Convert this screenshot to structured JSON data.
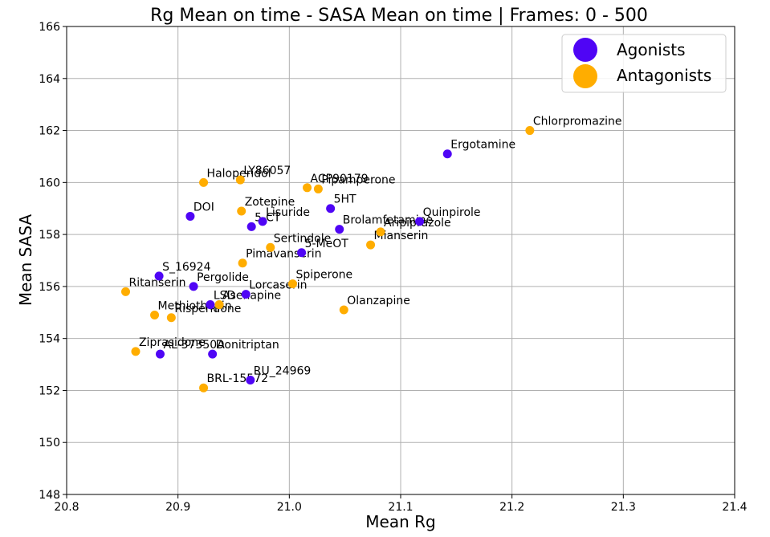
{
  "chart_data": {
    "type": "scatter",
    "title": "Rg Mean on time - SASA Mean on time  | Frames: 0 - 500",
    "xlabel": "Mean Rg",
    "ylabel": "Mean SASA",
    "xlim": [
      20.8,
      21.4
    ],
    "ylim": [
      148,
      166
    ],
    "xticks": [
      "20.8",
      "20.9",
      "21.0",
      "21.1",
      "21.2",
      "21.3",
      "21.4"
    ],
    "yticks": [
      "148",
      "150",
      "152",
      "154",
      "156",
      "158",
      "160",
      "162",
      "164",
      "166"
    ],
    "grid": true,
    "legend_position": "top-right",
    "series": [
      {
        "name": "Agonists",
        "color": "#4f05f5",
        "points": [
          {
            "label": "Ergotamine",
            "x": 21.142,
            "y": 161.1
          },
          {
            "label": "5HT",
            "x": 21.037,
            "y": 159.0
          },
          {
            "label": "Quinpirole",
            "x": 21.117,
            "y": 158.5
          },
          {
            "label": "DOI",
            "x": 20.911,
            "y": 158.7
          },
          {
            "label": "Lisuride",
            "x": 20.976,
            "y": 158.5
          },
          {
            "label": "5-CT",
            "x": 20.966,
            "y": 158.3
          },
          {
            "label": "Brolamfetamine",
            "x": 21.045,
            "y": 158.2
          },
          {
            "label": "5-MeOT",
            "x": 21.011,
            "y": 157.3
          },
          {
            "label": "S_16924",
            "x": 20.883,
            "y": 156.4
          },
          {
            "label": "Pergolide",
            "x": 20.914,
            "y": 156.0
          },
          {
            "label": "Lorcaserin",
            "x": 20.961,
            "y": 155.7
          },
          {
            "label": "LSD",
            "x": 20.929,
            "y": 155.3
          },
          {
            "label": "AL-37350A",
            "x": 20.884,
            "y": 153.4
          },
          {
            "label": "Donitriptan",
            "x": 20.931,
            "y": 153.4
          },
          {
            "label": "RU_24969",
            "x": 20.965,
            "y": 152.4
          }
        ]
      },
      {
        "name": "Antagonists",
        "color": "#ffad00",
        "points": [
          {
            "label": "Chlorpromazine",
            "x": 21.216,
            "y": 162.0
          },
          {
            "label": "Haloperidol",
            "x": 20.923,
            "y": 160.0
          },
          {
            "label": "LY86057",
            "x": 20.956,
            "y": 160.1
          },
          {
            "label": "ACP90179",
            "x": 21.016,
            "y": 159.8
          },
          {
            "label": "Pipamperone",
            "x": 21.026,
            "y": 159.75
          },
          {
            "label": "Zotepine",
            "x": 20.957,
            "y": 158.9
          },
          {
            "label": "Aripiprazole",
            "x": 21.082,
            "y": 158.1
          },
          {
            "label": "Mianserin",
            "x": 21.073,
            "y": 157.6
          },
          {
            "label": "Sertindole",
            "x": 20.983,
            "y": 157.5
          },
          {
            "label": "Pimavanserin",
            "x": 20.958,
            "y": 156.9
          },
          {
            "label": "Spiperone",
            "x": 21.003,
            "y": 156.1
          },
          {
            "label": "Ritanserin",
            "x": 20.853,
            "y": 155.8
          },
          {
            "label": "Asenapine",
            "x": 20.937,
            "y": 155.3
          },
          {
            "label": "Olanzapine",
            "x": 21.049,
            "y": 155.1
          },
          {
            "label": "Methiothepin",
            "x": 20.879,
            "y": 154.9
          },
          {
            "label": "Risperidone",
            "x": 20.894,
            "y": 154.8
          },
          {
            "label": "Ziprasidone",
            "x": 20.862,
            "y": 153.5
          },
          {
            "label": "BRL-15572",
            "x": 20.923,
            "y": 152.1
          }
        ]
      }
    ]
  }
}
